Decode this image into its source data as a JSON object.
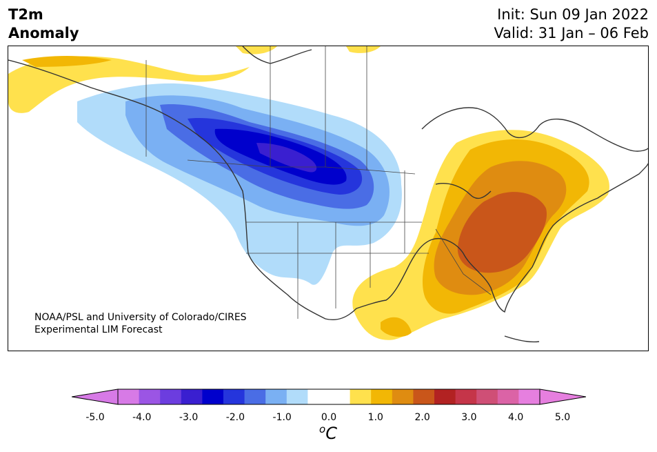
{
  "title": {
    "line1": "T2m",
    "line2": "Anomaly"
  },
  "init": "Init: Sun 09 Jan 2022",
  "valid": "Valid: 31 Jan – 06 Feb",
  "credit": {
    "line1": "NOAA/PSL and University of Colorado/CIRES",
    "line2": "Experimental LIM Forecast"
  },
  "colorbar": {
    "ticks": [
      "-5.0",
      "-4.0",
      "-3.0",
      "-2.0",
      "-1.0",
      "0.0",
      "1.0",
      "2.0",
      "3.0",
      "4.0",
      "5.0"
    ],
    "unit_sup": "o",
    "unit": "C",
    "under_color": "#d77ae6",
    "over_color": "#e67fdf",
    "colors": [
      "#d77ae6",
      "#9b55e4",
      "#6c3ddf",
      "#3a1fd0",
      "#0000cc",
      "#2535dc",
      "#4a6de5",
      "#7ab0f3",
      "#b1dcfa",
      "#ffffff",
      "#ffffff",
      "#ffe14d",
      "#f2b705",
      "#df8c11",
      "#c9561a",
      "#b22222",
      "#c53549",
      "#cf4f76",
      "#db63a6",
      "#e67fdf"
    ]
  }
}
